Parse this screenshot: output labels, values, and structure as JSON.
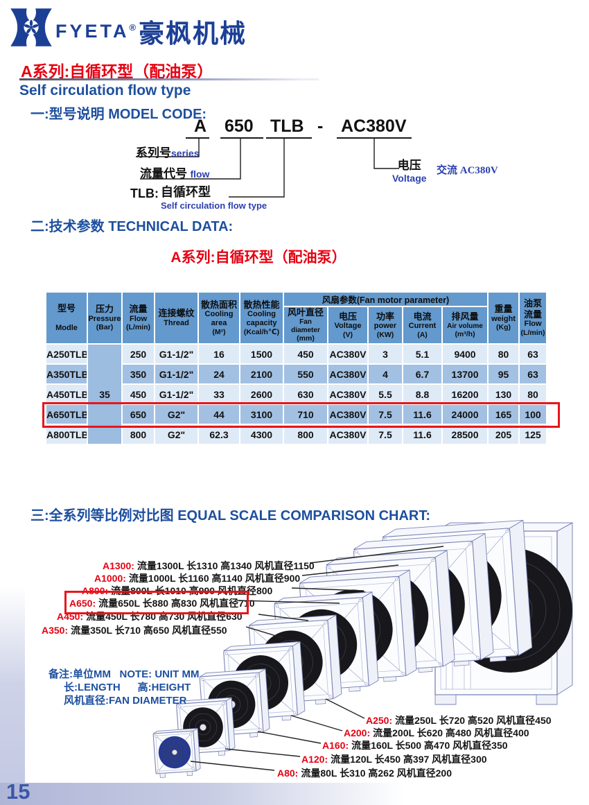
{
  "brand": {
    "logo_text": "FYETA",
    "reg_mark": "®",
    "brand_cn": "豪枫机械"
  },
  "header": {
    "series_title_cn": "A系列:自循环型（配油泵）",
    "series_title_en": "Self circulation flow type"
  },
  "sections": {
    "model_code_title": "一:型号说明 MODEL CODE:",
    "technical_title": "二:技术参数 TECHNICAL DATA:",
    "technical_subtitle": "A系列:自循环型（配油泵）",
    "comparison_title": "三:全系列等比例对比图 EQUAL SCALE COMPARISON CHART:"
  },
  "model_code": {
    "part_series": "A",
    "part_flow": "650",
    "part_type": "TLB",
    "separator": "-",
    "part_voltage": "AC380V",
    "series_label_cn": "系列号",
    "series_label_en": "series",
    "flow_label_cn": "流量代号",
    "flow_label_en": "flow",
    "type_prefix": "TLB:",
    "type_label_cn": "自循环型",
    "type_label_en": "Self circulation flow type",
    "voltage_label_cn": "电压",
    "voltage_label_en": "Voltage",
    "voltage_value": "交流 AC380V"
  },
  "table": {
    "group_header": "风扇参数(Fan motor parameter)",
    "columns": [
      {
        "cn": "型号",
        "en": "Modle",
        "unit": ""
      },
      {
        "cn": "压力",
        "en": "Pressure",
        "unit": "(Bar)"
      },
      {
        "cn": "流量",
        "en": "Flow",
        "unit": "(L/min)"
      },
      {
        "cn": "连接螺纹",
        "en": "Thread",
        "unit": ""
      },
      {
        "cn": "散热面积",
        "en": "Cooling area",
        "unit": "(M²)"
      },
      {
        "cn": "散热性能",
        "en": "Cooling capacity",
        "unit": "(Kcal/h℃)"
      },
      {
        "cn": "风叶直径",
        "en": "Fan diameter",
        "unit": "(mm)"
      },
      {
        "cn": "电压",
        "en": "Voltage",
        "unit": "(V)"
      },
      {
        "cn": "功率",
        "en": "power",
        "unit": "(KW)"
      },
      {
        "cn": "电流",
        "en": "Current",
        "unit": "(A)"
      },
      {
        "cn": "排风量",
        "en": "Air volume",
        "unit": "(m³/h)"
      },
      {
        "cn": "重量",
        "en": "weight",
        "unit": "(Kg)"
      },
      {
        "cn": "油泵",
        "cn2": "流量",
        "en": "Flow",
        "unit": "(L/min)"
      }
    ],
    "pressure_value": "35",
    "rows": [
      {
        "model": "A250TLB",
        "flow": "250",
        "thread": "G1-1/2\"",
        "area": "16",
        "capacity": "1500",
        "fan_dia": "450",
        "voltage": "AC380V",
        "power": "3",
        "current": "5.1",
        "air": "9400",
        "weight": "80",
        "pump_flow": "63"
      },
      {
        "model": "A350TLB",
        "flow": "350",
        "thread": "G1-1/2\"",
        "area": "24",
        "capacity": "2100",
        "fan_dia": "550",
        "voltage": "AC380V",
        "power": "4",
        "current": "6.7",
        "air": "13700",
        "weight": "95",
        "pump_flow": "63"
      },
      {
        "model": "A450TLB",
        "flow": "450",
        "thread": "G1-1/2\"",
        "area": "33",
        "capacity": "2600",
        "fan_dia": "630",
        "voltage": "AC380V",
        "power": "5.5",
        "current": "8.8",
        "air": "16200",
        "weight": "130",
        "pump_flow": "80"
      },
      {
        "model": "A650TLB",
        "flow": "650",
        "thread": "G2\"",
        "area": "44",
        "capacity": "3100",
        "fan_dia": "710",
        "voltage": "AC380V",
        "power": "7.5",
        "current": "11.6",
        "air": "24000",
        "weight": "165",
        "pump_flow": "100",
        "highlight": true
      },
      {
        "model": "A800TLB",
        "flow": "800",
        "thread": "G2\"",
        "area": "62.3",
        "capacity": "4300",
        "fan_dia": "800",
        "voltage": "AC380V",
        "power": "7.5",
        "current": "11.6",
        "air": "28500",
        "weight": "205",
        "pump_flow": "125"
      }
    ]
  },
  "chart": {
    "labels_left": [
      {
        "model": "A1300:",
        "spec": "流量1300L  长1310 高1340  风机直径1150"
      },
      {
        "model": "A1000:",
        "spec": "流量1000L  长1160 高1140  风机直径900"
      },
      {
        "model": "A800:",
        "spec": "流量800L  长1010 高990  风机直径800"
      },
      {
        "model": "A650:",
        "spec": "流量650L  长880 高830  风机直径710",
        "highlight": true
      },
      {
        "model": "A450:",
        "spec": "流量450L  长780 高730  风机直径630"
      },
      {
        "model": "A350:",
        "spec": "流量350L  长710 高650  风机直径550"
      }
    ],
    "labels_right": [
      {
        "model": "A250:",
        "spec": "流量250L  长720 高520  风机直径450"
      },
      {
        "model": "A200:",
        "spec": "流量200L  长620 高480   风机直径400"
      },
      {
        "model": "A160:",
        "spec": "流量160L  长500 高470   风机直径350"
      },
      {
        "model": "A120:",
        "spec": "流量120L  长450  高397   风机直径300"
      },
      {
        "model": "A80:",
        "spec": "流量80L  长310  高262   风机直径200"
      }
    ],
    "notes": [
      "备注:单位MM   NOTE: UNIT MM",
      "长:LENGTH      高:HEIGHT",
      "风机直径:FAN DIAMETER"
    ]
  },
  "footer": {
    "page_number": "15"
  }
}
